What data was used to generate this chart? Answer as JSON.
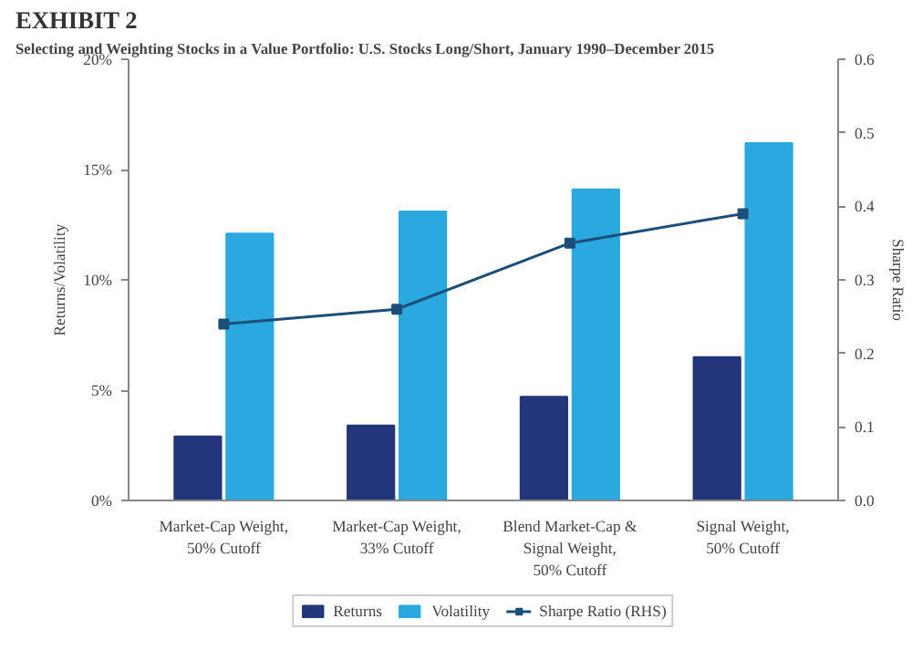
{
  "chart_data": {
    "type": "bar",
    "title": "EXHIBIT 2",
    "subtitle": "Selecting and Weighting Stocks in a Value Portfolio: U.S. Stocks Long/Short, January 1990–December 2015",
    "ylabel": "Returns/Volatility",
    "y2label": "Sharpe Ratio",
    "categories": [
      "Market-Cap Weight,\n50% Cutoff",
      "Market-Cap Weight,\n33% Cutoff",
      "Blend Market-Cap &\nSignal Weight,\n50% Cutoff",
      "Signal Weight,\n50% Cutoff"
    ],
    "series": [
      {
        "name": "Returns",
        "color": "#23367a",
        "values": [
          2.9,
          3.4,
          4.7,
          6.5
        ]
      },
      {
        "name": "Volatility",
        "color": "#2aa8e0",
        "values": [
          12.1,
          13.1,
          14.1,
          16.2
        ]
      },
      {
        "name": "Sharpe Ratio (RHS)",
        "type": "line",
        "axis": "y2",
        "color": "#1b4f7a",
        "marker": "square",
        "values": [
          0.24,
          0.26,
          0.35,
          0.39
        ]
      }
    ],
    "ylim": [
      0,
      20
    ],
    "yticks": [
      {
        "value": 0,
        "label": "0%"
      },
      {
        "value": 5,
        "label": "5%"
      },
      {
        "value": 10,
        "label": "10%"
      },
      {
        "value": 15,
        "label": "15%"
      },
      {
        "value": 20,
        "label": "20%"
      }
    ],
    "y2lim": [
      0,
      0.6
    ],
    "y2ticks": [
      {
        "value": 0,
        "label": "0.0"
      },
      {
        "value": 0.1,
        "label": "0.1"
      },
      {
        "value": 0.2,
        "label": "0.2"
      },
      {
        "value": 0.3,
        "label": "0.3"
      },
      {
        "value": 0.4,
        "label": "0.4"
      },
      {
        "value": 0.5,
        "label": "0.5"
      },
      {
        "value": 0.6,
        "label": "0.6"
      }
    ],
    "grid": false,
    "legend": "bottom"
  }
}
